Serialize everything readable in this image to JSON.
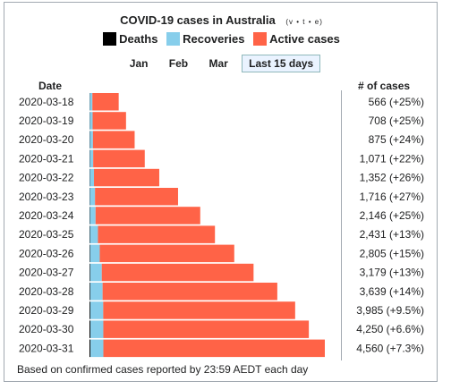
{
  "title": "COVID-19 cases in Australia",
  "vte": [
    "v",
    "t",
    "e"
  ],
  "legend": [
    {
      "label": "Deaths",
      "color": "#000000"
    },
    {
      "label": "Recoveries",
      "color": "#87ceeb"
    },
    {
      "label": "Active cases",
      "color": "#ff6347"
    }
  ],
  "tabs": [
    {
      "label": "Jan",
      "active": false
    },
    {
      "label": "Feb",
      "active": false
    },
    {
      "label": "Mar",
      "active": false
    },
    {
      "label": "Last 15 days",
      "active": true
    }
  ],
  "headers": {
    "date": "Date",
    "cases": "# of cases"
  },
  "footer": "Based on confirmed cases reported by 23:59 AEDT each day",
  "chart_data": {
    "type": "bar",
    "orientation": "horizontal",
    "stacked": true,
    "title": "COVID-19 cases in Australia",
    "categories": [
      "2020-03-18",
      "2020-03-19",
      "2020-03-20",
      "2020-03-21",
      "2020-03-22",
      "2020-03-23",
      "2020-03-24",
      "2020-03-25",
      "2020-03-26",
      "2020-03-27",
      "2020-03-28",
      "2020-03-29",
      "2020-03-30",
      "2020-03-31"
    ],
    "series": [
      {
        "name": "Deaths",
        "color": "#000000",
        "values": [
          6,
          6,
          7,
          7,
          7,
          7,
          8,
          9,
          11,
          13,
          14,
          16,
          18,
          19
        ]
      },
      {
        "name": "Recoveries",
        "color": "#87ceeb",
        "values": [
          50,
          55,
          60,
          65,
          80,
          100,
          110,
          155,
          188,
          225,
          240,
          250,
          250,
          250
        ]
      },
      {
        "name": "Active cases",
        "color": "#ff6347",
        "values": [
          510,
          647,
          808,
          999,
          1265,
          1609,
          2028,
          2267,
          2606,
          2941,
          3385,
          3719,
          3982,
          4291
        ]
      }
    ],
    "totals": [
      566,
      708,
      875,
      1071,
      1352,
      1716,
      2146,
      2431,
      2805,
      3179,
      3639,
      3985,
      4250,
      4560
    ],
    "labels": [
      "566 (+25%)",
      "708 (+25%)",
      "875 (+24%)",
      "1,071 (+22%)",
      "1,352 (+26%)",
      "1,716 (+27%)",
      "2,146 (+25%)",
      "2,431 (+13%)",
      "2,805 (+15%)",
      "3,179 (+13%)",
      "3,639 (+14%)",
      "3,985 (+9.5%)",
      "4,250 (+6.6%)",
      "4,560 (+7.3%)"
    ]
  }
}
